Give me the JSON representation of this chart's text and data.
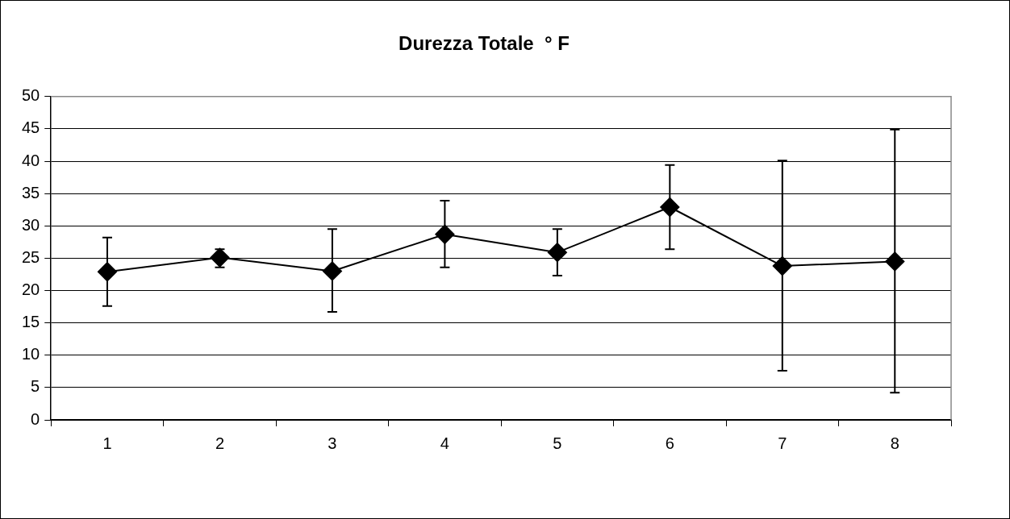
{
  "chart_data": {
    "type": "line",
    "title": "Durezza Totale  ° F",
    "categories": [
      "1",
      "2",
      "3",
      "4",
      "5",
      "6",
      "7",
      "8"
    ],
    "values": [
      22.9,
      25.1,
      23.0,
      28.7,
      25.9,
      32.9,
      23.8,
      24.5
    ],
    "errors": [
      [
        17.6,
        28.2
      ],
      [
        23.6,
        26.4
      ],
      [
        16.7,
        29.5
      ],
      [
        23.6,
        33.9
      ],
      [
        22.3,
        29.5
      ],
      [
        26.4,
        39.4
      ],
      [
        7.6,
        40.1
      ],
      [
        4.2,
        44.9
      ]
    ],
    "color": "#000000",
    "marker": "diamond",
    "line_style": "solid",
    "ylim": [
      0,
      50
    ],
    "yticks": [
      0,
      5,
      10,
      15,
      20,
      25,
      30,
      35,
      40,
      45,
      50
    ],
    "grid": "y",
    "legend": false
  }
}
